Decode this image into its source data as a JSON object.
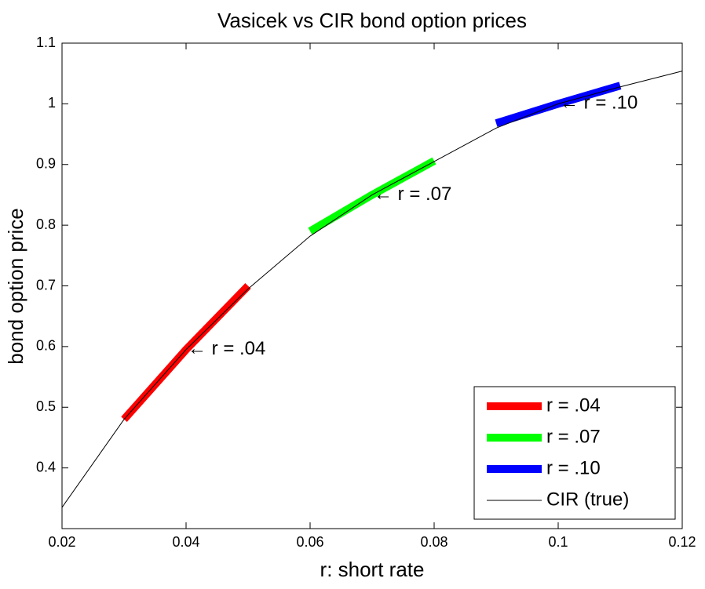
{
  "chart_data": {
    "type": "line",
    "title": "Vasicek vs CIR bond option prices",
    "x_label": "r: short rate",
    "y_label": "bond option price",
    "xlim": [
      0.02,
      0.12
    ],
    "xticks": [
      0.02,
      0.04,
      0.06,
      0.08,
      0.1,
      0.12
    ],
    "ylim": [
      0.3,
      1.1
    ],
    "yticks": [
      0.4,
      0.5,
      0.6,
      0.7,
      0.8,
      0.9,
      1,
      1.1
    ],
    "legend": "lower right",
    "grid": false,
    "series": [
      {
        "name": "r = .04",
        "color": "#ff0000",
        "x": [
          0.03,
          0.04,
          0.05
        ],
        "values": [
          0.48,
          0.595,
          0.7
        ],
        "annotation": "← r = .04"
      },
      {
        "name": "r = .07",
        "color": "#00ff00",
        "x": [
          0.06,
          0.07,
          0.08
        ],
        "values": [
          0.79,
          0.85,
          0.906
        ],
        "annotation": "← r = .07"
      },
      {
        "name": "r = .10",
        "color": "#0000ff",
        "x": [
          0.09,
          0.1,
          0.11
        ],
        "values": [
          0.968,
          1.0,
          1.03
        ],
        "annotation": "← r = .10"
      },
      {
        "name": "CIR (true)",
        "color": "#000000",
        "x": [
          0.02,
          0.03,
          0.04,
          0.05,
          0.06,
          0.07,
          0.08,
          0.09,
          0.1,
          0.11,
          0.12
        ],
        "values": [
          0.335,
          0.48,
          0.595,
          0.695,
          0.782,
          0.85,
          0.905,
          0.96,
          1.0,
          1.028,
          1.054
        ]
      }
    ]
  }
}
